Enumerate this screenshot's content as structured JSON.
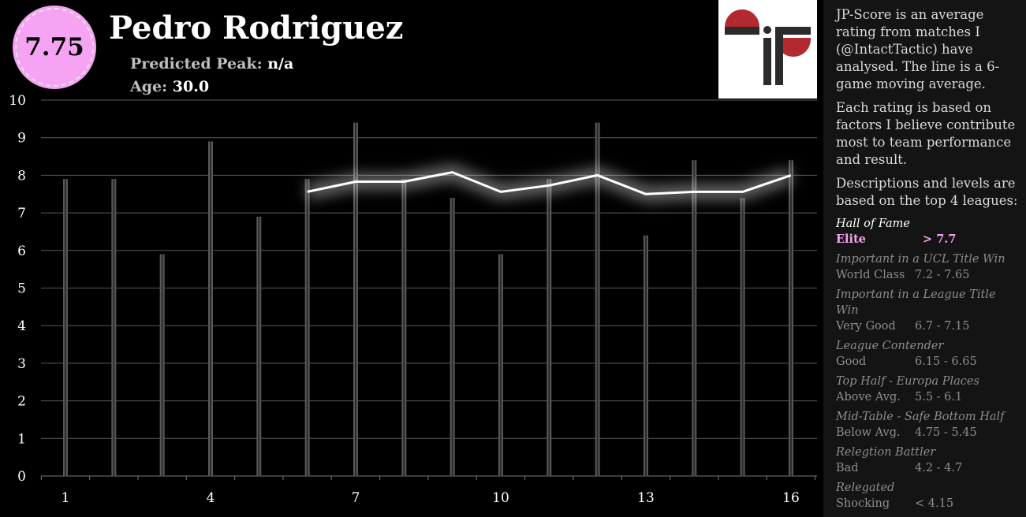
{
  "player": {
    "score": "7.75",
    "name": "Pedro Rodriguez",
    "peak_label": "Predicted Peak:",
    "peak_value": "n/a",
    "age_label": "Age:",
    "age_value": "30.0"
  },
  "side_panel": {
    "intro": [
      "JP-Score is an average rating from matches I (@IntactTactic) have analysed. The line is a 6-game moving average.",
      "Each rating is based on factors I believe contribute most to team performance and result.",
      "Descriptions and levels are based on the top 4 leagues:"
    ],
    "levels": [
      {
        "desc": "Hall of Fame",
        "name": "Elite",
        "range": "> 7.7"
      },
      {
        "desc": "Important in a UCL Title Win",
        "name": "World Class",
        "range": "7.2 - 7.65"
      },
      {
        "desc": "Important in a League Title Win",
        "name": "Very Good",
        "range": "6.7 - 7.15"
      },
      {
        "desc": "League Contender",
        "name": "Good",
        "range": "6.15 - 6.65"
      },
      {
        "desc": "Top Half - Europa Places",
        "name": "Above Avg.",
        "range": "5.5 - 6.1"
      },
      {
        "desc": "Mid-Table - Safe Bottom Half",
        "name": "Below Avg.",
        "range": "4.75 - 5.45"
      },
      {
        "desc": "Relegtion Battler",
        "name": "Bad",
        "range": "4.2 - 4.7"
      },
      {
        "desc": "Relegated",
        "name": "Shocking",
        "range": "< 4.15"
      }
    ]
  },
  "colors": {
    "accent": "#f5a3f2",
    "bar": "#595959",
    "line": "#ffffff",
    "logo_red": "#b22a2f",
    "logo_dark": "#2b2b2b"
  },
  "chart_data": {
    "type": "bar",
    "x": [
      1,
      2,
      3,
      4,
      5,
      6,
      7,
      8,
      9,
      10,
      11,
      12,
      13,
      14,
      15,
      16
    ],
    "x_tick_labels": [
      "1",
      "4",
      "7",
      "10",
      "13",
      "16"
    ],
    "ylim": [
      0,
      10
    ],
    "y_ticks": [
      0,
      1,
      2,
      3,
      4,
      5,
      6,
      7,
      8,
      9,
      10
    ],
    "grid": true,
    "series": [
      {
        "type": "bar",
        "values": [
          7.9,
          7.9,
          5.9,
          8.9,
          6.9,
          7.9,
          9.4,
          7.9,
          7.4,
          5.9,
          7.9,
          9.4,
          6.4,
          8.4,
          7.4,
          8.4
        ]
      },
      {
        "type": "line",
        "x": [
          6,
          7,
          8,
          9,
          10,
          11,
          12,
          13,
          14,
          15,
          16
        ],
        "values": [
          7.56,
          7.83,
          7.83,
          8.08,
          7.56,
          7.73,
          8.0,
          7.5,
          7.56,
          7.56,
          8.0
        ]
      }
    ]
  }
}
